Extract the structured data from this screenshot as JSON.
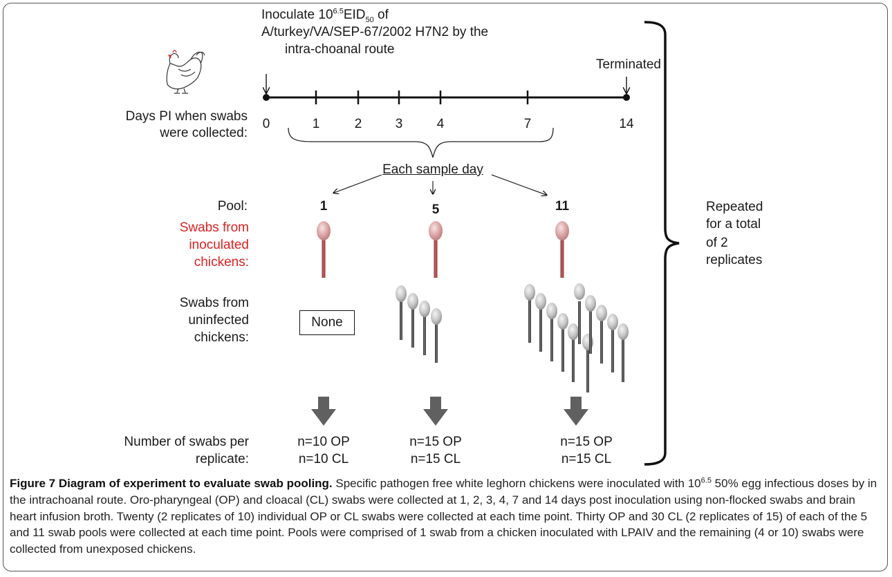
{
  "inoculation": {
    "line1_prefix": "Inoculate 10",
    "line1_exp": "6.5",
    "line1_mid": "EID",
    "line1_sub": "50",
    "line1_suffix": " of",
    "line2": "A/turkey/VA/SEP-67/2002 H7N2 by the",
    "line3": "intra-choanal route"
  },
  "terminated_label": "Terminated",
  "timeline": {
    "row_label_1": "Days PI when swabs",
    "row_label_2": "were collected:",
    "days": [
      "0",
      "1",
      "2",
      "3",
      "4",
      "7",
      "14"
    ]
  },
  "each_sample_day": "Each sample day",
  "pool": {
    "label": "Pool:",
    "sizes": [
      "1",
      "5",
      "11"
    ]
  },
  "inoculated_row": {
    "line1": "Swabs from",
    "line2": "inoculated",
    "line3": "chickens:",
    "color": "#e02020"
  },
  "uninfected_row": {
    "line1": "Swabs from",
    "line2": "uninfected",
    "line3": "chickens:",
    "none_label": "None"
  },
  "swabs_per_replicate": {
    "label_1": "Number of swabs per",
    "label_2": "replicate:",
    "counts": [
      {
        "op": "n=10 OP",
        "cl": "n=10 CL"
      },
      {
        "op": "n=15 OP",
        "cl": "n=15 CL"
      },
      {
        "op": "n=15 OP",
        "cl": "n=15 CL"
      }
    ]
  },
  "repeated": {
    "line1": "Repeated",
    "line2": "for a total",
    "line3": "of 2",
    "line4": "replicates"
  },
  "caption": {
    "title": "Figure 7 Diagram of experiment to evaluate swab pooling.",
    "body_1": " Specific pathogen free white leghorn chickens were inoculated with 10",
    "body_exp": "6.5",
    "body_2": " 50% egg infectious doses by in the intrachoanal route. Oro-pharyngeal (OP) and cloacal (CL) swabs were collected at 1, 2, 3, 4, 7 and 14 days post inoculation using non-flocked swabs and brain heart infusion broth. Twenty (2 replicates of 10) individual OP or CL swabs were collected at each time point. Thirty OP and 30 CL (2 replicates of 15) of each of the 5 and 11 swab pools were collected at each time point. Pools were comprised of 1 swab from a chicken inoculated with LPAIV and the remaining (4 or 10) swabs were collected from unexposed chickens."
  },
  "colors": {
    "inoculated_swab_head": "#d9a0a0",
    "inoculated_swab_stick": "#b04848",
    "uninfected_swab_head": "#c8c8c8",
    "uninfected_swab_stick": "#555555",
    "down_arrow": "#606060"
  }
}
